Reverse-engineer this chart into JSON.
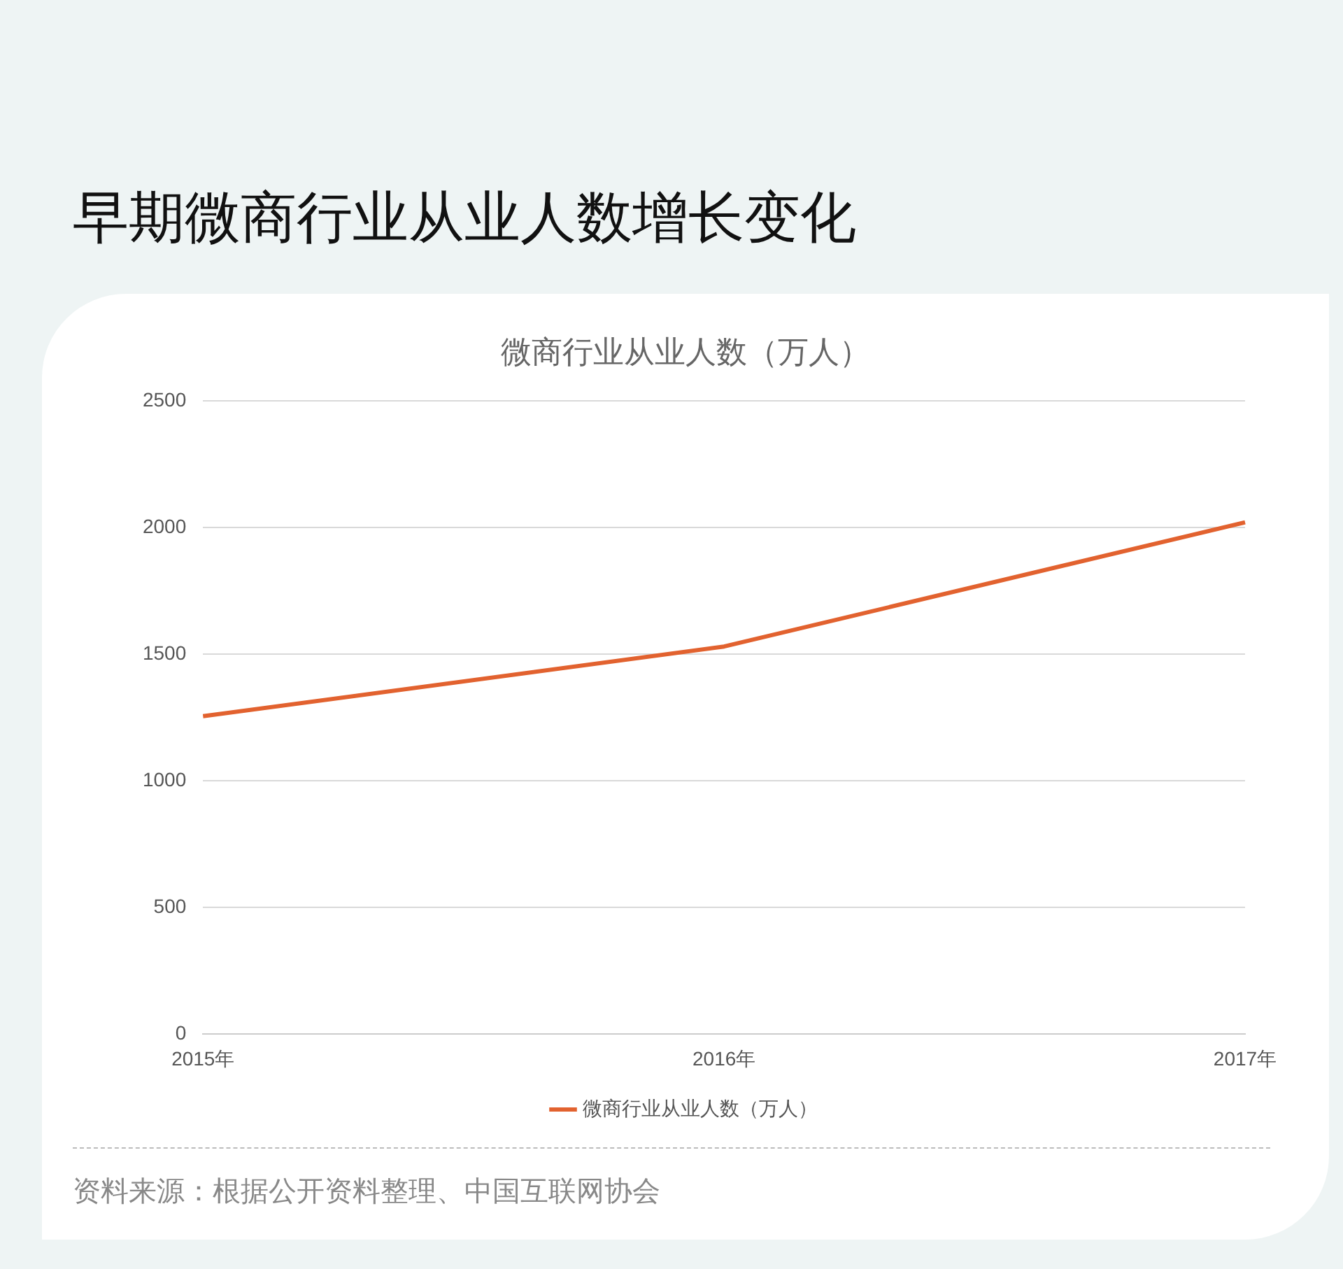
{
  "chart_data": {
    "type": "line",
    "title": "早期微商行业从业人数增长变化",
    "subtitle": "微商行业从业人数（万人）",
    "categories": [
      "2015年",
      "2016年",
      "2017年"
    ],
    "series": [
      {
        "name": "微商行业从业人数（万人）",
        "color": "#e2622f",
        "values": [
          1255,
          1530,
          2020
        ]
      }
    ],
    "ylim": [
      0,
      2500
    ],
    "yticks": [
      0,
      500,
      1000,
      1500,
      2000,
      2500
    ],
    "grid": "y",
    "legend": "bottom",
    "marker": "none",
    "line_style": "solid",
    "annotations": [
      "资料来源：根据公开资料整理、中国互联网协会"
    ]
  }
}
